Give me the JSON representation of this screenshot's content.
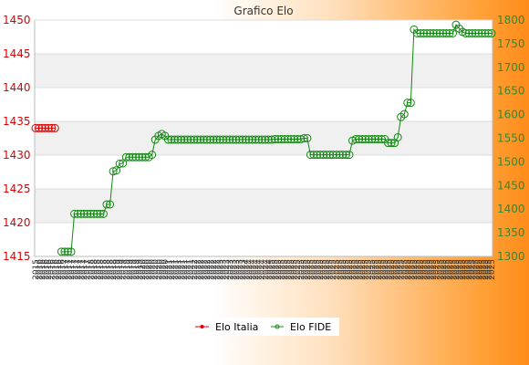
{
  "chart_data": {
    "type": "line",
    "title": "Grafico Elo",
    "x_tick_labels": [
      "2015",
      "2016",
      "2016",
      "2016",
      "2016",
      "2016",
      "2016",
      "2016",
      "2016",
      "2017",
      "2017",
      "2017",
      "2017",
      "2017",
      "2017",
      "2017",
      "2017",
      "2018",
      "2018",
      "2018",
      "2018",
      "2018",
      "2018",
      "2018",
      "2018",
      "2019",
      "2019",
      "2019",
      "2019",
      "2019",
      "2019",
      "2019",
      "2019",
      "2020",
      "2020",
      "2020",
      "2020",
      "2020",
      "2020",
      "2020",
      "2020",
      "2021",
      "2021",
      "2021",
      "2021",
      "2021",
      "2021",
      "2021",
      "2021",
      "2022",
      "2022",
      "2022",
      "2022",
      "2022",
      "2022",
      "2022",
      "2022",
      "2023",
      "2023",
      "2023",
      "2023",
      "2023",
      "2023",
      "2023",
      "2023",
      "2024",
      "2024",
      "2024",
      "2024",
      "2024",
      "2024",
      "2024",
      "2024",
      "2025",
      "2025",
      "2025",
      "2025",
      "2025",
      "2025",
      "2025",
      "2025",
      "2025",
      "2025",
      "2025",
      "2025",
      "2025",
      "2025",
      "2025",
      "2025",
      "2025",
      "2025",
      "2025",
      "2025",
      "2025",
      "2025",
      "2025",
      "2025",
      "2025",
      "2025",
      "2025",
      "2025",
      "2025",
      "2025",
      "2025",
      "2025",
      "2025",
      "2025",
      "2025",
      "2025",
      "2025",
      "2025",
      "2025",
      "2025",
      "2025",
      "2025",
      "2025",
      "2025",
      "2025",
      "2025",
      "2025",
      "2025",
      "2025",
      "2025",
      "2025",
      "2025",
      "2025",
      "2025",
      "2025",
      "2025",
      "2025",
      "2025",
      "2025",
      "2025",
      "2025",
      "2025",
      "2025",
      "2025",
      "2025",
      "2025",
      "2025",
      "2025",
      "2025"
    ],
    "y_left": {
      "ylim": [
        1415,
        1450
      ],
      "ticks": [
        1415,
        1420,
        1425,
        1430,
        1435,
        1440,
        1445,
        1450
      ]
    },
    "y_right": {
      "ylim": [
        1300,
        1800
      ],
      "ticks": [
        1300,
        1350,
        1400,
        1450,
        1500,
        1550,
        1600,
        1650,
        1700,
        1750,
        1800
      ]
    },
    "series": [
      {
        "name": "Elo Italia",
        "axis": "left",
        "color": "#dd0000",
        "values": [
          1434,
          1434,
          1434,
          1434,
          1434,
          1434,
          1434
        ]
      },
      {
        "name": "Elo FIDE",
        "axis": "right",
        "color": "#118811",
        "values": [
          null,
          null,
          null,
          null,
          null,
          null,
          null,
          null,
          1310,
          1310,
          1310,
          1310,
          1390,
          1390,
          1390,
          1390,
          1390,
          1390,
          1390,
          1390,
          1390,
          1390,
          1410,
          1410,
          1480,
          1482,
          1496,
          1497,
          1510,
          1510,
          1510,
          1510,
          1510,
          1510,
          1510,
          1510,
          1515,
          1547,
          1555,
          1559,
          1555,
          1547,
          1547,
          1547,
          1547,
          1547,
          1547,
          1547,
          1547,
          1547,
          1547,
          1547,
          1547,
          1547,
          1547,
          1547,
          1547,
          1547,
          1547,
          1547,
          1547,
          1547,
          1547,
          1547,
          1547,
          1547,
          1547,
          1547,
          1547,
          1547,
          1547,
          1547,
          1547,
          1547,
          1548,
          1548,
          1548,
          1548,
          1548,
          1548,
          1548,
          1548,
          1548,
          1550,
          1550,
          1515,
          1515,
          1515,
          1515,
          1515,
          1515,
          1515,
          1515,
          1515,
          1515,
          1515,
          1515,
          1515,
          1545,
          1548,
          1548,
          1548,
          1548,
          1548,
          1548,
          1548,
          1548,
          1548,
          1548,
          1540,
          1540,
          1540,
          1552,
          1595,
          1601,
          1625,
          1625,
          1780,
          1772,
          1772,
          1772,
          1772,
          1772,
          1772,
          1772,
          1772,
          1772,
          1772,
          1772,
          1772,
          1790,
          1782,
          1775,
          1772,
          1772,
          1772,
          1772,
          1772,
          1772,
          1772,
          1772,
          1772
        ]
      }
    ],
    "grid": true,
    "legend_position": "bottom-center"
  }
}
